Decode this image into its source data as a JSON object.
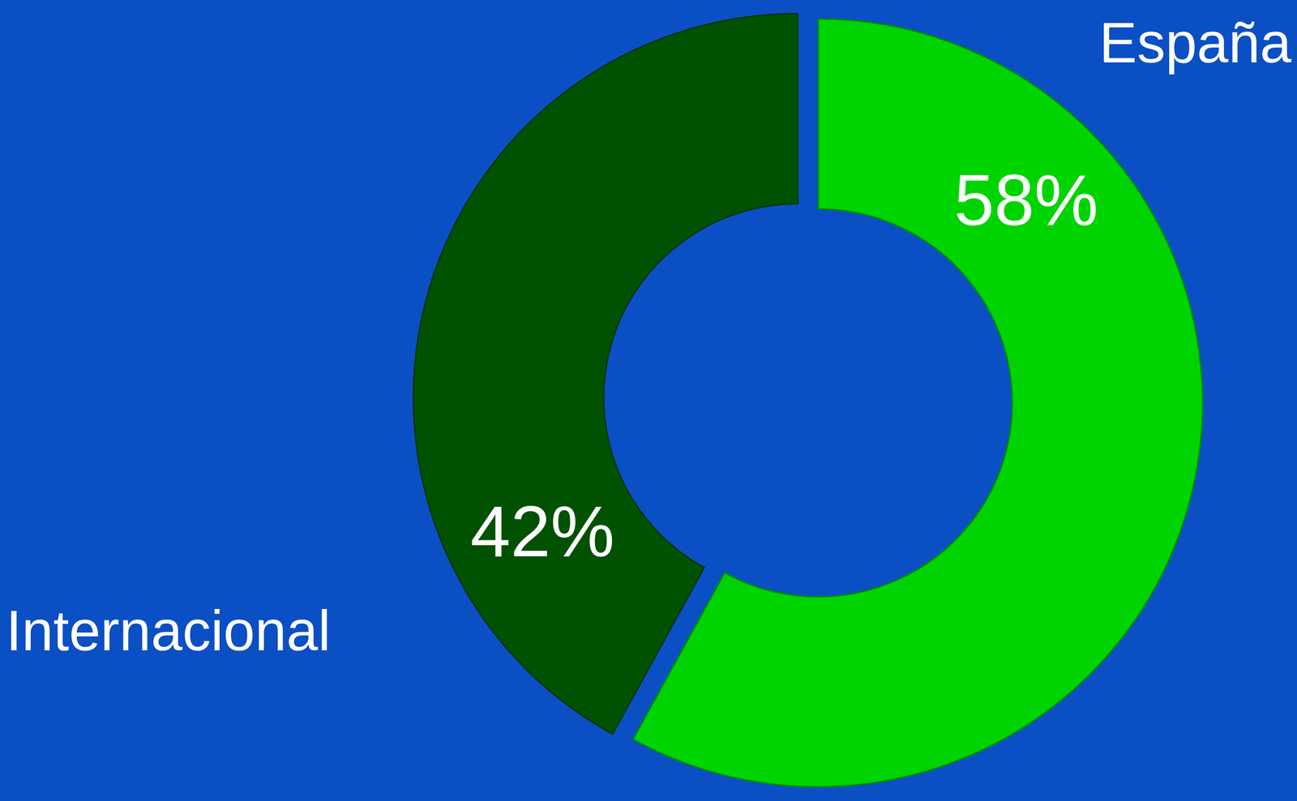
{
  "chart_data": {
    "type": "donut",
    "categories": [
      "España",
      "Internacional"
    ],
    "values": [
      58,
      42
    ],
    "value_labels": [
      "58%",
      "42%"
    ],
    "colors": [
      "#00d400",
      "#005200"
    ],
    "data_labels": true
  }
}
